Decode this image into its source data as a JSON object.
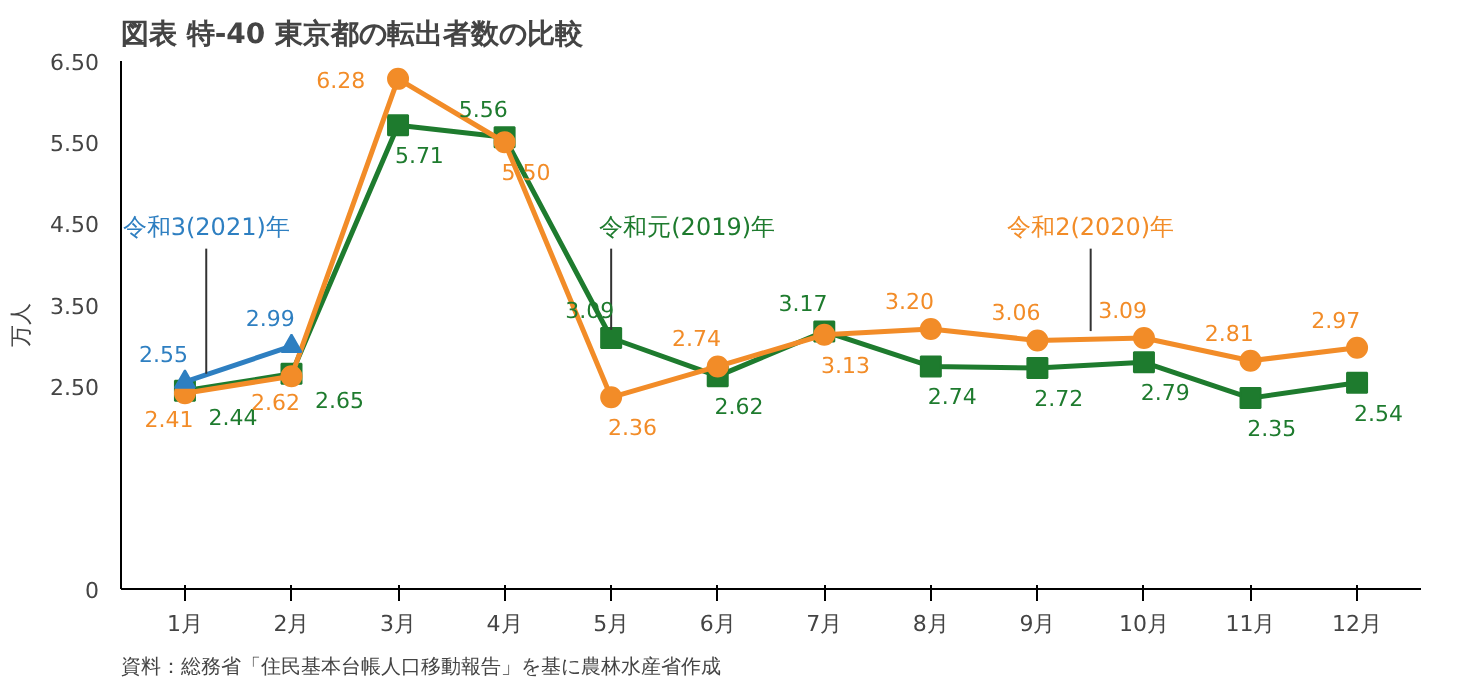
{
  "chart_data": {
    "type": "line",
    "title": "図表 特-40 東京都の転出者数の比較",
    "ylabel": "万人",
    "categories": [
      "1月",
      "2月",
      "3月",
      "4月",
      "5月",
      "6月",
      "7月",
      "8月",
      "9月",
      "10月",
      "11月",
      "12月"
    ],
    "ylim": [
      0,
      6.5
    ],
    "yticks": [
      0,
      {
        "value": 2.5,
        "label": "2.50"
      },
      {
        "value": 3.5,
        "label": "3.50"
      },
      {
        "value": 4.5,
        "label": "4.50"
      },
      {
        "value": 5.5,
        "label": "5.50"
      },
      {
        "value": 6.5,
        "label": "6.50"
      }
    ],
    "series": [
      {
        "name": "令和元(2019)年",
        "color": "#1e7b2e",
        "marker": "square",
        "values": [
          2.44,
          2.65,
          5.71,
          5.56,
          3.09,
          2.62,
          3.17,
          2.74,
          2.72,
          2.79,
          2.35,
          2.54
        ],
        "value_labels": [
          "2.44",
          "2.65",
          "5.71",
          "5.56",
          "3.09",
          "2.62",
          "3.17",
          "2.74",
          "2.72",
          "2.79",
          "2.35",
          "2.54"
        ]
      },
      {
        "name": "令和2(2020)年",
        "color": "#f28c28",
        "marker": "circle",
        "values": [
          2.41,
          2.62,
          6.28,
          5.5,
          2.36,
          2.74,
          3.13,
          3.2,
          3.06,
          3.09,
          2.81,
          2.97
        ],
        "value_labels": [
          "2.41",
          "2.62",
          "6.28",
          "5.50",
          "2.36",
          "2.74",
          "3.13",
          "3.20",
          "3.06",
          "3.09",
          "2.81",
          "2.97"
        ]
      },
      {
        "name": "令和3(2021)年",
        "color": "#2e7fc1",
        "marker": "triangle",
        "values": [
          2.55,
          2.99,
          null,
          null,
          null,
          null,
          null,
          null,
          null,
          null,
          null,
          null
        ],
        "value_labels": [
          "2.55",
          "2.99",
          null,
          null,
          null,
          null,
          null,
          null,
          null,
          null,
          null,
          null
        ]
      }
    ],
    "grid": false,
    "annotations": [
      "資料：総務省「住民基本台帳人口移動報告」を基に農林水産省作成"
    ]
  }
}
